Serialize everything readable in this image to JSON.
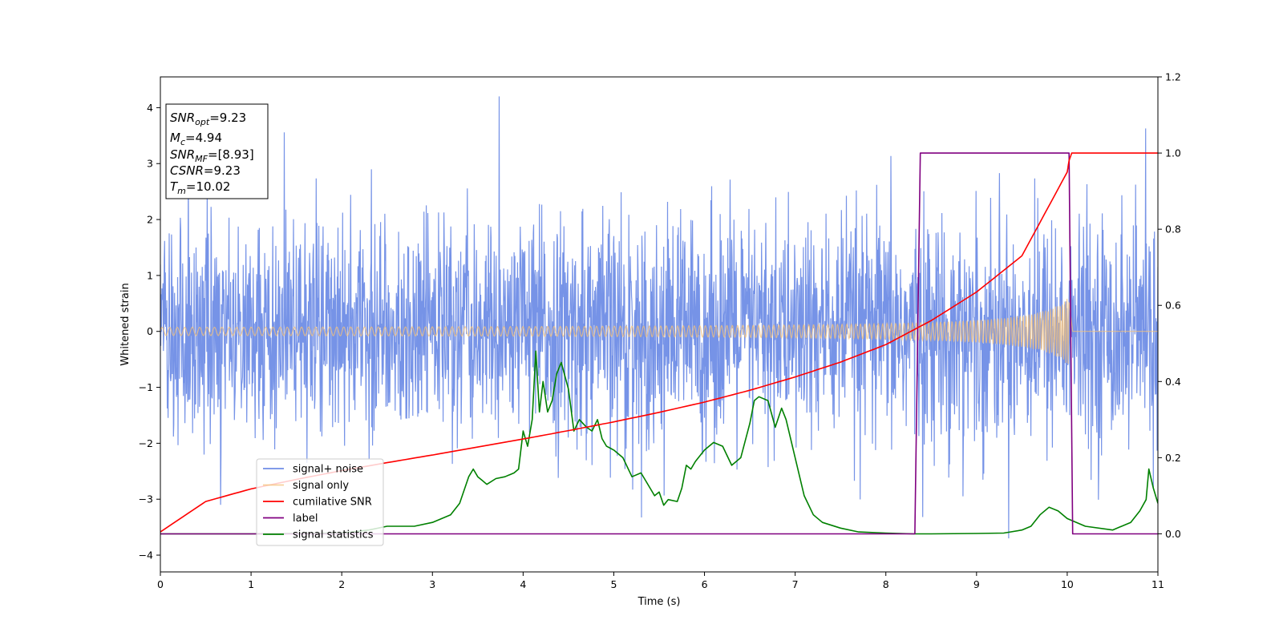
{
  "chart_data": {
    "type": "line",
    "xlabel": "Time (s)",
    "ylabel": "Whitened strain",
    "xlim": [
      0,
      11
    ],
    "ylim_left": [
      -4.3,
      4.55
    ],
    "ylim_right": [
      -0.1,
      1.2
    ],
    "x_ticks": [
      0,
      1,
      2,
      3,
      4,
      5,
      6,
      7,
      8,
      9,
      10,
      11
    ],
    "y_ticks_left": [
      -4,
      -3,
      -2,
      -1,
      0,
      1,
      2,
      3,
      4
    ],
    "y_ticks_right": [
      "0.0",
      "0.2",
      "0.4",
      "0.6",
      "0.8",
      "1.0",
      "1.2"
    ],
    "grid": false,
    "legend_placement": "lower-left",
    "annotation": {
      "snr_opt": {
        "base": "SNR",
        "sub": "opt",
        "value": "=9.23"
      },
      "mc": {
        "base": "M",
        "sub": "c",
        "value": "=4.94"
      },
      "snr_mf": {
        "base": "SNR",
        "sub": "MF",
        "value": "=[8.93]"
      },
      "csnr": {
        "base": "CSNR",
        "value": "=9.23"
      },
      "tm": {
        "base": "T",
        "sub": "m",
        "value": "=10.02"
      }
    },
    "series": [
      {
        "name": "signal+ noise",
        "color": "#6f8de6",
        "axis": "left",
        "kind": "noise",
        "approx_std": 1.0,
        "x_range": [
          0,
          11
        ]
      },
      {
        "name": "signal only",
        "color": "#f5c27a",
        "axis": "left",
        "kind": "chirp",
        "amplitude_start": 0.05,
        "amplitude_peak": 0.65,
        "merger_time": 10.02
      },
      {
        "name": "cumilative SNR",
        "color": "#ff0000",
        "axis": "right",
        "x": [
          0,
          0.5,
          1,
          1.5,
          2,
          2.5,
          3,
          3.5,
          4,
          4.5,
          5,
          5.5,
          6,
          6.5,
          7,
          7.5,
          8,
          8.5,
          9,
          9.5,
          10,
          10.02,
          10.05,
          11
        ],
        "y": [
          0.005,
          0.085,
          0.118,
          0.143,
          0.166,
          0.187,
          0.207,
          0.228,
          0.249,
          0.271,
          0.294,
          0.319,
          0.346,
          0.377,
          0.412,
          0.451,
          0.497,
          0.56,
          0.635,
          0.73,
          0.95,
          0.98,
          1.0,
          1.0
        ]
      },
      {
        "name": "label",
        "color": "#800080",
        "axis": "right",
        "x": [
          0,
          8.32,
          8.38,
          10.02,
          10.06,
          11
        ],
        "y": [
          0,
          0,
          1,
          1,
          0,
          0
        ]
      },
      {
        "name": "signal statistics",
        "color": "#008000",
        "axis": "right",
        "x": [
          0,
          1,
          2,
          2.3,
          2.5,
          2.8,
          3.0,
          3.2,
          3.3,
          3.4,
          3.45,
          3.5,
          3.55,
          3.6,
          3.7,
          3.8,
          3.9,
          3.95,
          4.0,
          4.05,
          4.1,
          4.14,
          4.18,
          4.22,
          4.27,
          4.32,
          4.37,
          4.42,
          4.5,
          4.56,
          4.62,
          4.7,
          4.76,
          4.82,
          4.87,
          4.92,
          5.0,
          5.1,
          5.2,
          5.3,
          5.4,
          5.45,
          5.5,
          5.55,
          5.6,
          5.7,
          5.75,
          5.8,
          5.85,
          5.9,
          6.0,
          6.1,
          6.2,
          6.3,
          6.4,
          6.5,
          6.55,
          6.6,
          6.7,
          6.78,
          6.85,
          6.9,
          7.0,
          7.1,
          7.2,
          7.3,
          7.5,
          7.7,
          8.0,
          8.3,
          8.5,
          9.0,
          9.3,
          9.5,
          9.6,
          9.7,
          9.8,
          9.9,
          10.0,
          10.2,
          10.5,
          10.7,
          10.8,
          10.87,
          10.9,
          10.95,
          11.0
        ],
        "y": [
          0,
          0,
          0.002,
          0.01,
          0.02,
          0.02,
          0.03,
          0.05,
          0.08,
          0.15,
          0.17,
          0.15,
          0.14,
          0.13,
          0.145,
          0.15,
          0.16,
          0.17,
          0.27,
          0.23,
          0.3,
          0.48,
          0.32,
          0.4,
          0.32,
          0.35,
          0.42,
          0.45,
          0.38,
          0.27,
          0.3,
          0.28,
          0.27,
          0.3,
          0.25,
          0.23,
          0.22,
          0.2,
          0.15,
          0.16,
          0.12,
          0.1,
          0.11,
          0.075,
          0.09,
          0.085,
          0.12,
          0.18,
          0.17,
          0.19,
          0.22,
          0.24,
          0.23,
          0.18,
          0.2,
          0.29,
          0.35,
          0.36,
          0.35,
          0.28,
          0.33,
          0.3,
          0.2,
          0.1,
          0.05,
          0.03,
          0.015,
          0.005,
          0.002,
          0,
          0,
          0.001,
          0.002,
          0.01,
          0.02,
          0.05,
          0.07,
          0.06,
          0.04,
          0.02,
          0.01,
          0.03,
          0.06,
          0.09,
          0.17,
          0.12,
          0.08
        ]
      }
    ]
  }
}
